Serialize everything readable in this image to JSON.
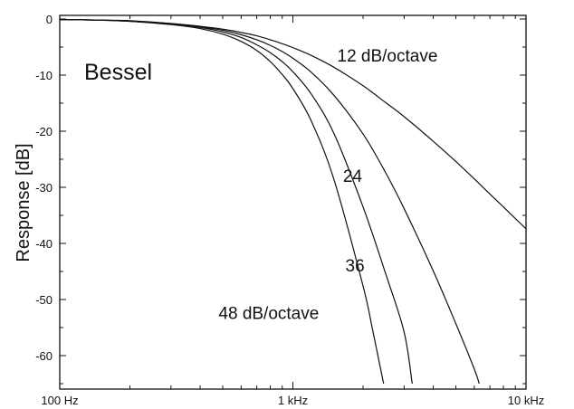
{
  "chart_data": {
    "type": "line",
    "title": "Bessel",
    "xlabel": "",
    "ylabel": "Response [dB]",
    "xscale": "log",
    "xlim": [
      100,
      10000
    ],
    "ylim": [
      -65,
      0
    ],
    "grid": false,
    "x_ticks": [
      {
        "value": 100,
        "label": "100 Hz"
      },
      {
        "value": 1000,
        "label": "1 kHz"
      },
      {
        "value": 10000,
        "label": "10 kHz"
      }
    ],
    "y_ticks": [
      {
        "value": 0,
        "label": "0"
      },
      {
        "value": -10,
        "label": "-10"
      },
      {
        "value": -20,
        "label": "-20"
      },
      {
        "value": -30,
        "label": "-30"
      },
      {
        "value": -40,
        "label": "-40"
      },
      {
        "value": -50,
        "label": "-50"
      },
      {
        "value": -60,
        "label": "-60"
      }
    ],
    "series": [
      {
        "name": "12 dB/octave",
        "x": [
          100,
          150,
          200,
          300,
          400,
          500,
          600,
          700,
          800,
          900,
          1000,
          1200,
          1500,
          2000,
          2500,
          3000,
          4000,
          5000,
          6000,
          7000,
          8000,
          10000
        ],
        "y": [
          -0.1,
          -0.2,
          -0.4,
          -0.8,
          -1.3,
          -1.8,
          -2.4,
          -3.0,
          -3.7,
          -4.4,
          -5.1,
          -6.5,
          -8.6,
          -11.9,
          -14.9,
          -17.4,
          -21.8,
          -25.4,
          -28.5,
          -31.2,
          -33.5,
          -37.4
        ]
      },
      {
        "name": "24",
        "x": [
          100,
          150,
          200,
          300,
          400,
          500,
          600,
          700,
          800,
          900,
          1000,
          1200,
          1500,
          2000,
          2500,
          3000,
          4000,
          5000,
          6000,
          6300
        ],
        "y": [
          -0.1,
          -0.2,
          -0.3,
          -0.8,
          -1.4,
          -2.0,
          -2.8,
          -3.7,
          -4.7,
          -5.8,
          -7.0,
          -9.5,
          -13.6,
          -20.5,
          -27.4,
          -33.8,
          -44.9,
          -54.3,
          -62.4,
          -65.0
        ]
      },
      {
        "name": "36",
        "x": [
          100,
          150,
          200,
          300,
          400,
          500,
          600,
          700,
          800,
          900,
          1000,
          1200,
          1500,
          2000,
          2500,
          3000,
          3250
        ],
        "y": [
          -0.1,
          -0.2,
          -0.4,
          -0.9,
          -1.5,
          -2.3,
          -3.3,
          -4.6,
          -6.0,
          -7.6,
          -9.4,
          -13.4,
          -20.4,
          -33.5,
          -45.4,
          -55.8,
          -65.0
        ]
      },
      {
        "name": "48 dB/octave",
        "x": [
          100,
          150,
          200,
          300,
          400,
          500,
          600,
          700,
          800,
          900,
          1000,
          1200,
          1500,
          2000,
          2200,
          2450
        ],
        "y": [
          -0.1,
          -0.2,
          -0.4,
          -1.0,
          -1.7,
          -2.7,
          -4.0,
          -5.6,
          -7.6,
          -9.9,
          -12.4,
          -18.2,
          -28.6,
          -47.6,
          -55.5,
          -65.0
        ]
      }
    ],
    "annotations": [
      {
        "text": "12 dB/octave",
        "series": "12 dB/octave",
        "x": 1550,
        "y": -7.6
      },
      {
        "text": "24",
        "series": "24",
        "x": 1640,
        "y": -29.0
      },
      {
        "text": "36",
        "series": "36",
        "x": 1680,
        "y": -45.0
      },
      {
        "text": "48 dB/octave",
        "series": "48 dB/octave",
        "x": 480,
        "y": -53.5
      }
    ]
  }
}
